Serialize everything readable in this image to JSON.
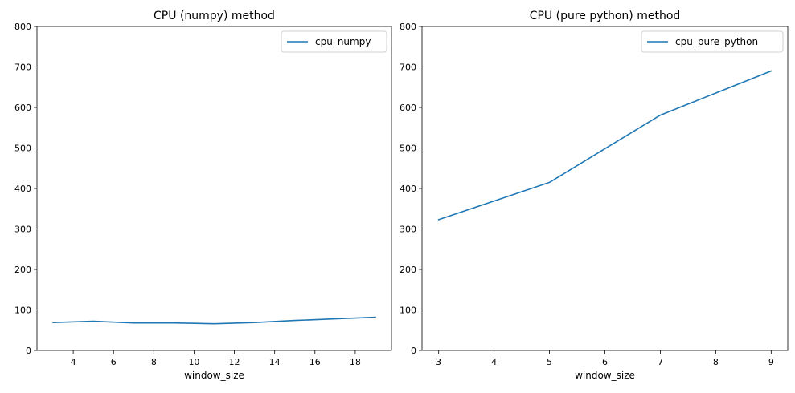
{
  "chart_data": [
    {
      "type": "line",
      "title": "CPU (numpy) method",
      "xlabel": "window_size",
      "ylabel": "",
      "xlim": [
        2.2,
        19.8
      ],
      "ylim": [
        0,
        800
      ],
      "xticks": [
        4,
        6,
        8,
        10,
        12,
        14,
        16,
        18
      ],
      "yticks": [
        0,
        100,
        200,
        300,
        400,
        500,
        600,
        700,
        800
      ],
      "legend_position": "top-right",
      "grid": false,
      "series": [
        {
          "name": "cpu_numpy",
          "color": "#1f77b4",
          "x": [
            3,
            5,
            7,
            9,
            11,
            13,
            15,
            17,
            19
          ],
          "y": [
            69,
            72,
            68,
            68,
            66,
            69,
            74,
            78,
            82
          ]
        }
      ]
    },
    {
      "type": "line",
      "title": "CPU (pure python) method",
      "xlabel": "window_size",
      "ylabel": "",
      "xlim": [
        2.7,
        9.3
      ],
      "ylim": [
        0,
        800
      ],
      "xticks": [
        3,
        4,
        5,
        6,
        7,
        8,
        9
      ],
      "yticks": [
        0,
        100,
        200,
        300,
        400,
        500,
        600,
        700,
        800
      ],
      "legend_position": "top-right",
      "grid": false,
      "series": [
        {
          "name": "cpu_pure_python",
          "color": "#1f77b4",
          "x": [
            3,
            5,
            7,
            9
          ],
          "y": [
            323,
            415,
            581,
            690
          ]
        }
      ]
    }
  ]
}
